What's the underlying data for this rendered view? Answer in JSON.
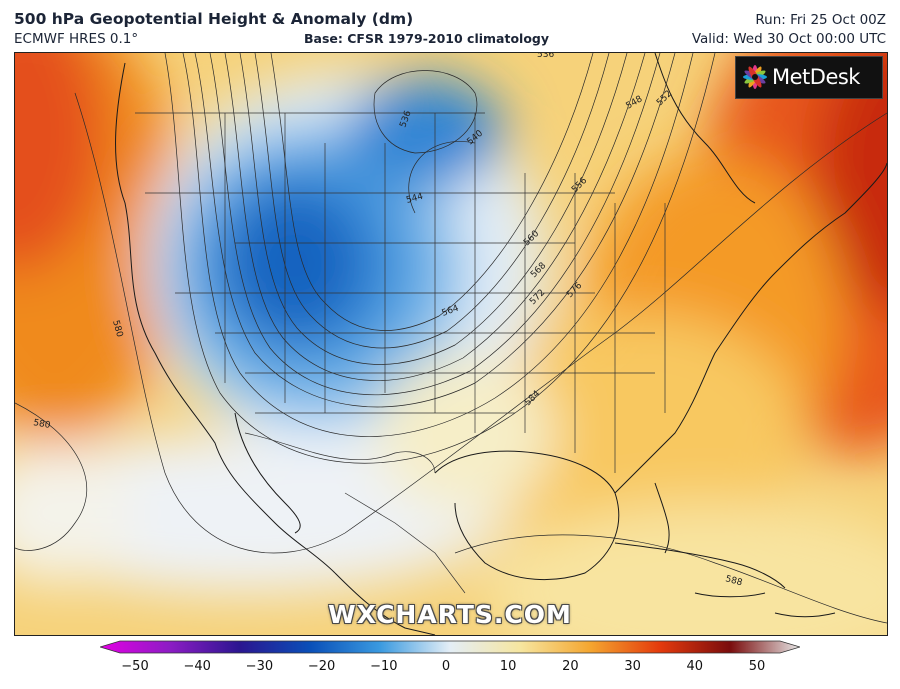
{
  "header": {
    "title": "500 hPa Geopotential Height & Anomaly (dm)",
    "model": "ECMWF HRES 0.1°",
    "base": "Base: CFSR 1979-2010 climatology",
    "run": "Run: Fri 25 Oct 00Z",
    "valid": "Valid: Wed 30 Oct 00:00 UTC"
  },
  "logo": {
    "text": "MetDesk",
    "icon": "flower-logo-icon"
  },
  "watermark": "WXCHARTS.COM",
  "contour_labels": [
    "536",
    "536",
    "540",
    "544",
    "548",
    "552",
    "556",
    "560",
    "564",
    "568",
    "572",
    "576",
    "580",
    "580",
    "584",
    "588"
  ],
  "colorbar": {
    "ticks": [
      "−50",
      "−40",
      "−30",
      "−20",
      "−10",
      "0",
      "10",
      "20",
      "30",
      "40",
      "50"
    ],
    "colors": [
      "#e400e4",
      "#8c1cc4",
      "#2a1690",
      "#0a4fb8",
      "#3a9ae0",
      "#e4eef6",
      "#f6e6a0",
      "#f4a630",
      "#e43a0c",
      "#7a0c0c",
      "#e6e6e6"
    ]
  }
}
